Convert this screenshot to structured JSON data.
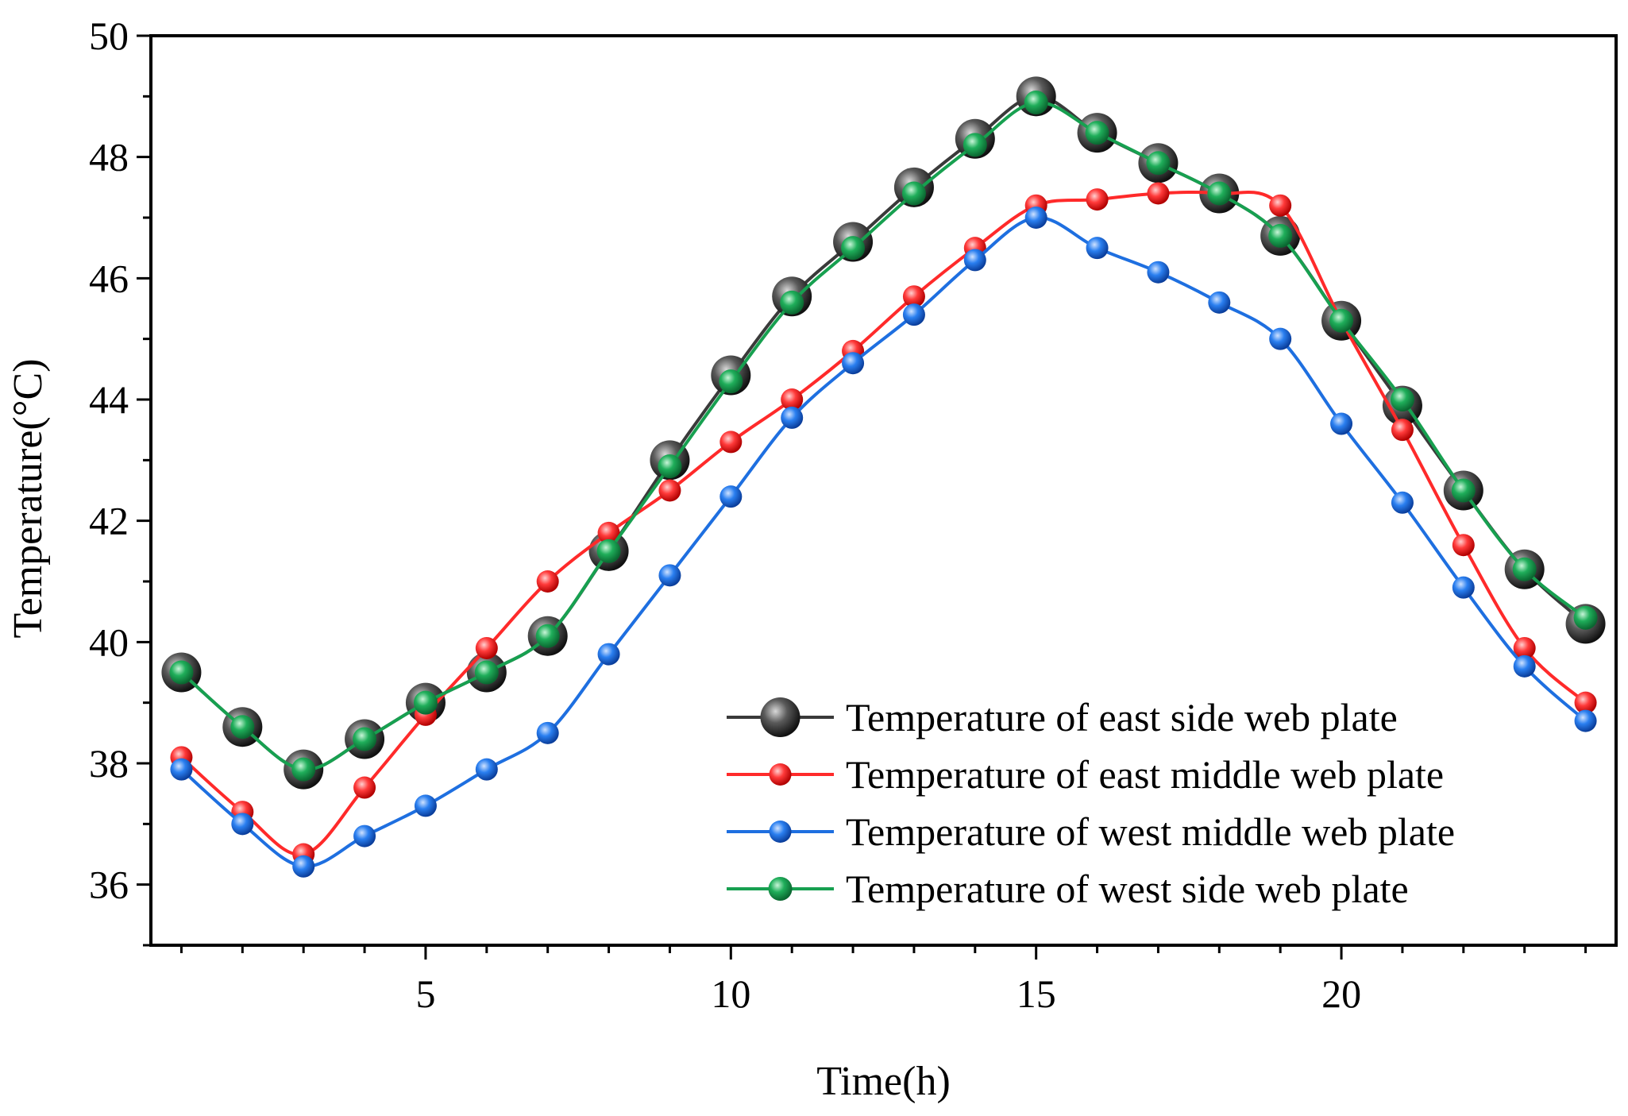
{
  "chart_data": {
    "type": "line",
    "title": "",
    "xlabel": "Time(h)",
    "ylabel": "Temperature(°C)",
    "xlim": [
      0.5,
      24.5
    ],
    "ylim": [
      35,
      50
    ],
    "x_ticks": [
      5,
      10,
      15,
      20
    ],
    "y_ticks": [
      36,
      38,
      40,
      42,
      44,
      46,
      48,
      50
    ],
    "grid": false,
    "legend_position": "bottom-right",
    "x": [
      1,
      2,
      3,
      4,
      5,
      6,
      7,
      8,
      9,
      10,
      11,
      12,
      13,
      14,
      15,
      16,
      17,
      18,
      19,
      20,
      21,
      22,
      23,
      24
    ],
    "series": [
      {
        "name": "Temperature of east side web plate",
        "color": "#3a3a3a",
        "line_color": "#3a3a3a",
        "marker": "large-dark-sphere",
        "values": [
          39.5,
          38.6,
          37.9,
          38.4,
          39.0,
          39.5,
          40.1,
          41.5,
          43.0,
          44.4,
          45.7,
          46.6,
          47.5,
          48.3,
          49.0,
          48.4,
          47.9,
          47.4,
          46.7,
          45.3,
          43.9,
          42.5,
          41.2,
          40.3
        ]
      },
      {
        "name": "Temperature of east middle web plate",
        "color": "#ff2a2a",
        "line_color": "#ff2a2a",
        "marker": "red-sphere",
        "values": [
          38.1,
          37.2,
          36.5,
          37.6,
          38.8,
          39.9,
          41.0,
          41.8,
          42.5,
          43.3,
          44.0,
          44.8,
          45.7,
          46.5,
          47.2,
          47.3,
          47.4,
          47.4,
          47.2,
          45.3,
          43.5,
          41.6,
          39.9,
          39.0
        ]
      },
      {
        "name": "Temperature of west middle web plate",
        "color": "#1e6fe0",
        "line_color": "#1e6fe0",
        "marker": "blue-sphere",
        "values": [
          37.9,
          37.0,
          36.3,
          36.8,
          37.3,
          37.9,
          38.5,
          39.8,
          41.1,
          42.4,
          43.7,
          44.6,
          45.4,
          46.3,
          47.0,
          46.5,
          46.1,
          45.6,
          45.0,
          43.6,
          42.3,
          40.9,
          39.6,
          38.7
        ]
      },
      {
        "name": "Temperature of west side web plate",
        "color": "#1a9a50",
        "line_color": "#17a050",
        "marker": "green-sphere",
        "values": [
          39.5,
          38.6,
          37.9,
          38.4,
          39.0,
          39.5,
          40.1,
          41.5,
          42.9,
          44.3,
          45.6,
          46.5,
          47.4,
          48.2,
          48.9,
          48.4,
          47.9,
          47.4,
          46.7,
          45.3,
          44.0,
          42.5,
          41.2,
          40.4
        ]
      }
    ]
  }
}
